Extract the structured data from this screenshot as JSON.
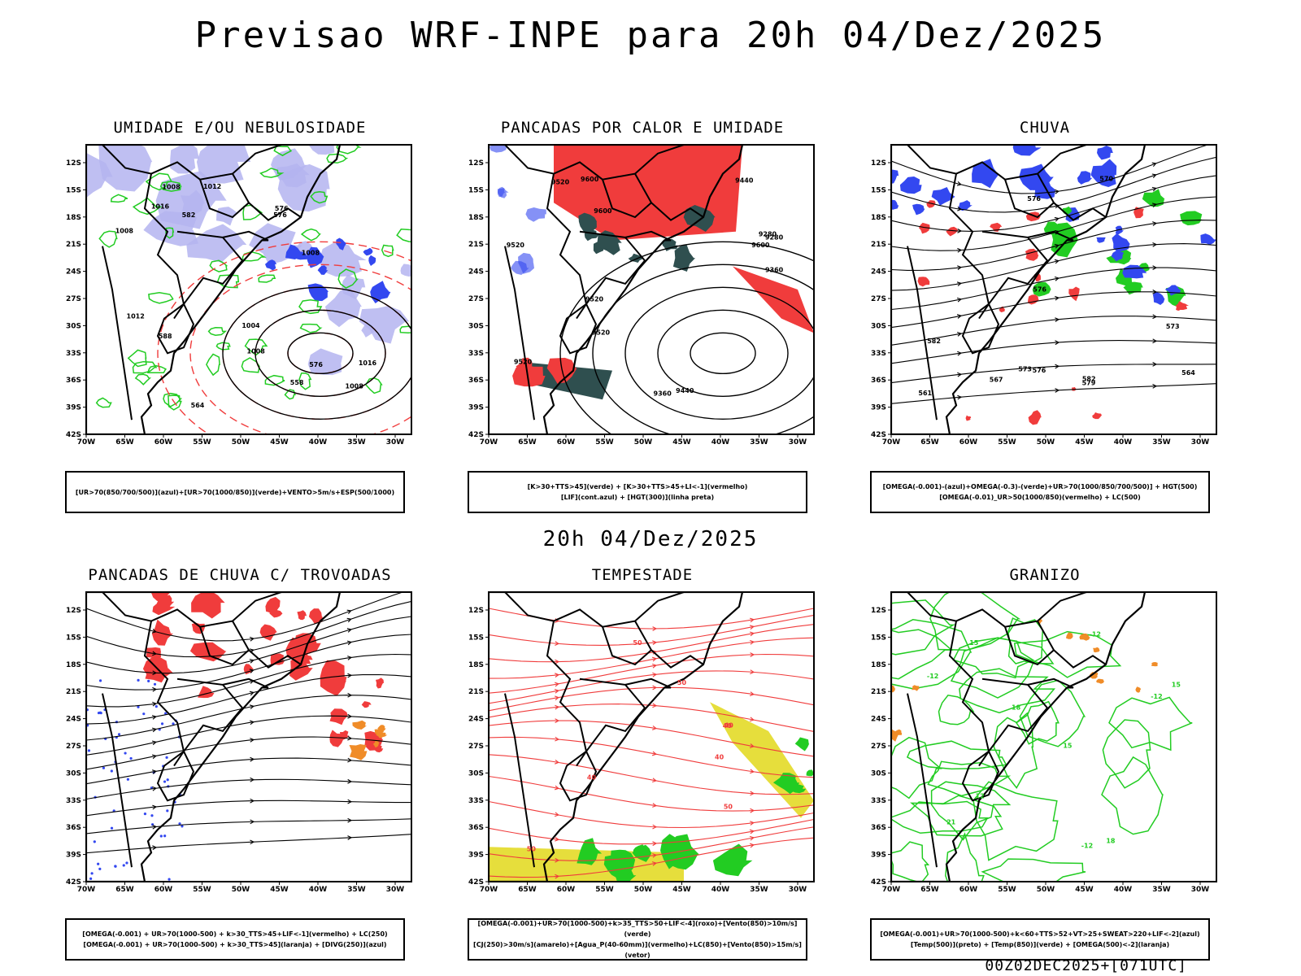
{
  "header": {
    "title": "Previsao WRF-INPE  para 20h 04/Dez/2025",
    "mid_title": "20h 04/Dez/2025",
    "footer": "00Z02DEC2025+[071UTC]"
  },
  "axes": {
    "lat_labels": [
      "12S",
      "15S",
      "18S",
      "21S",
      "24S",
      "27S",
      "30S",
      "33S",
      "36S",
      "39S",
      "42S"
    ],
    "lon_labels": [
      "70W",
      "65W",
      "60W",
      "55W",
      "50W",
      "45W",
      "40W",
      "35W",
      "30W"
    ]
  },
  "colors": {
    "blue": "#3348f0",
    "green": "#22cc22",
    "red": "#f03c3c",
    "lavender": "#b4b4f0",
    "darkteal": "#2f4f4f",
    "yellow": "#e6de3c",
    "orange": "#f08c28"
  },
  "panels": [
    {
      "title": "UMIDADE E/OU NEBULOSIDADE",
      "legend": [
        "[UR>70(850/700/500)](azul)+[UR>70(1000/850)](verde)+VENTO>5m/s+ESP(500/1000)"
      ],
      "contour_labels": [
        "1008",
        "1008",
        "1008",
        "1012",
        "1012",
        "1016",
        "1016",
        "1004",
        "1008",
        "1008",
        "576",
        "576",
        "576",
        "564",
        "558",
        "588",
        "582"
      ]
    },
    {
      "title": "PANCADAS POR CALOR E UMIDADE",
      "legend": [
        "[K>30+TTS>45](verde) + [K>30+TTS>45+LI<-1](vermelho)",
        "[LIF](cont.azul) + [HGT(300)](linha preta)"
      ],
      "contour_labels": [
        "9600",
        "9600",
        "9600",
        "9520",
        "9520",
        "9520",
        "9520",
        "9440",
        "9440",
        "9360",
        "9360",
        "9280",
        "9280",
        "9520"
      ]
    },
    {
      "title": "CHUVA",
      "legend": [
        "[OMEGA(-0.001)-(azul)+OMEGA(-0.3)-(verde)+UR>70(1000/850/700/500)] + HGT(500)",
        "[OMEGA(-0.01)_UR>50(1000/850)(vermelho) + LC(500)"
      ],
      "contour_labels": [
        "582",
        "576",
        "576",
        "573",
        "570",
        "567",
        "564",
        "561",
        "579",
        "576",
        "582",
        "573"
      ]
    },
    {
      "title": "PANCADAS DE CHUVA C/ TROVOADAS",
      "legend": [
        "[OMEGA(-0.001) + UR>70(1000-500) + k>30_TTS>45+LIF<-1](vermelho) + LC(250)",
        "[OMEGA(-0.001) + UR>70(1000-500) + k>30_TTS>45](laranja) + [DIVG(250)](azul)"
      ],
      "contour_labels": []
    },
    {
      "title": "TEMPESTADE",
      "legend": [
        "[OMEGA(-0.001)+UR>70(1000-500)+k>35_TTS>50+LIF<-4](roxo)+[Vento(850)>10m/s](verde)",
        "[CJ(250)>30m/s](amarelo)+[Agua_P(40-60mm)](vermelho)+LC(850)+[Vento(850)>15m/s](vetor)"
      ],
      "contour_labels": [
        "50",
        "40",
        "40",
        "50",
        "40",
        "40",
        "50",
        "50"
      ]
    },
    {
      "title": "GRANIZO",
      "legend": [
        "[OMEGA(-0.001)+UR>70(1000-500)+k<60+TTS>52+VT>25+SWEAT>220+LIF<-2](azul)",
        "[Temp(500)](preto) + [Temp(850)](verde) + [OMEGA(500)<-2](laranja)"
      ],
      "contour_labels": [
        "21",
        "18",
        "18",
        "15",
        "15",
        "12",
        "15",
        "-12",
        "-12",
        "-12",
        "-12"
      ]
    }
  ]
}
